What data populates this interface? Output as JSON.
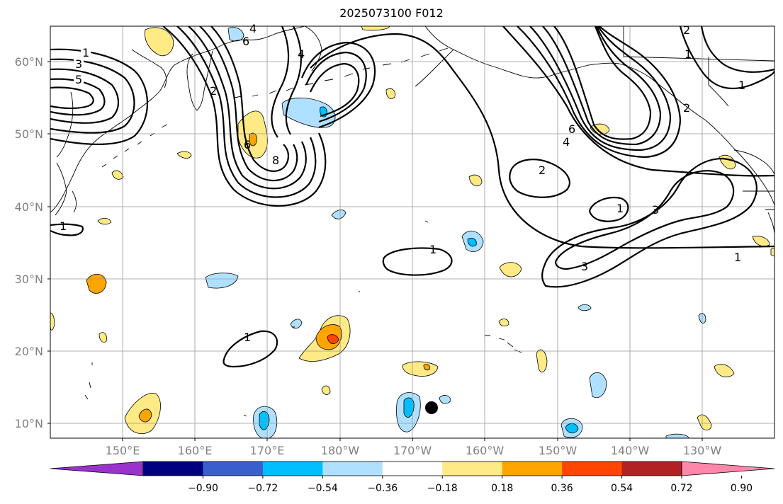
{
  "title": "2025073100 F012",
  "lat_ticks": [
    "60°N",
    "50°N",
    "40°N",
    "30°N",
    "20°N",
    "10°N"
  ],
  "lon_ticks": [
    "150°E",
    "160°E",
    "170°E",
    "180°W",
    "170°W",
    "160°W",
    "150°W",
    "140°W",
    "130°W"
  ],
  "colorbar": {
    "tick_labels": [
      "−0.90",
      "−0.72",
      "−0.54",
      "−0.36",
      "−0.18",
      "0.18",
      "0.36",
      "0.54",
      "0.72",
      "0.90"
    ],
    "colors": [
      "#9933cc",
      "#000080",
      "#3a5fcd",
      "#00bfff",
      "#b0e0ff",
      "#ffffff",
      "#ffea85",
      "#ffa500",
      "#ff4500",
      "#b22222",
      "#ff88aa"
    ],
    "extend": "both"
  },
  "contour_labels": [
    "1",
    "3",
    "5",
    "4",
    "6",
    "4",
    "2",
    "6",
    "8",
    "1",
    "2",
    "6",
    "4",
    "2",
    "1",
    "2",
    "1",
    "3",
    "1",
    "3",
    "1",
    "1",
    "1"
  ],
  "marker": "filled-black-circle",
  "colors": {
    "contour": "#000000",
    "grid": "#999999",
    "coast": "#000000"
  }
}
